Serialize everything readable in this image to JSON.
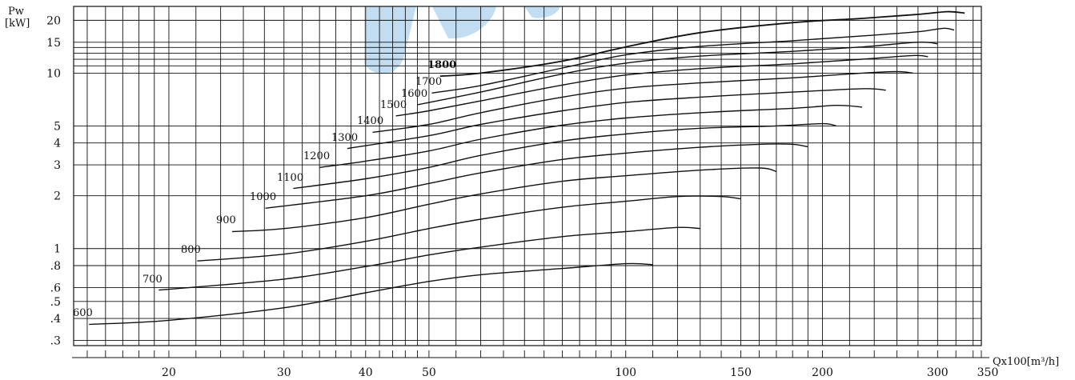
{
  "chart_data": {
    "type": "line",
    "title": "",
    "ylabel": [
      "Pw",
      "[kW]"
    ],
    "xlabel": "Qx100[m³/h]",
    "x_scale": "log",
    "y_scale": "log",
    "xlim": [
      14.3,
      350
    ],
    "ylim": [
      0.28,
      24
    ],
    "grid": true,
    "color": "#111111",
    "x_ticks": [
      {
        "value": 20,
        "label": "20"
      },
      {
        "value": 30,
        "label": "30"
      },
      {
        "value": 40,
        "label": "40"
      },
      {
        "value": 50,
        "label": "50"
      },
      {
        "value": 100,
        "label": "100"
      },
      {
        "value": 150,
        "label": "150"
      },
      {
        "value": 200,
        "label": "200"
      },
      {
        "value": 300,
        "label": "300"
      },
      {
        "value": 350,
        "label": "350"
      }
    ],
    "y_ticks": [
      {
        "value": 0.3,
        "label": ".3"
      },
      {
        "value": 0.4,
        "label": ".4"
      },
      {
        "value": 0.5,
        "label": ".5"
      },
      {
        "value": 0.6,
        "label": ".6"
      },
      {
        "value": 0.8,
        "label": ".8"
      },
      {
        "value": 1,
        "label": "1"
      },
      {
        "value": 2,
        "label": "2"
      },
      {
        "value": 3,
        "label": "3"
      },
      {
        "value": 4,
        "label": "4"
      },
      {
        "value": 5,
        "label": "5"
      },
      {
        "value": 10,
        "label": "10"
      },
      {
        "value": 15,
        "label": "15"
      },
      {
        "value": 20,
        "label": "20"
      }
    ],
    "series": [
      {
        "name": "600",
        "points": [
          [
            15.1,
            0.37
          ],
          [
            20,
            0.39
          ],
          [
            30,
            0.46
          ],
          [
            40,
            0.56
          ],
          [
            50,
            0.65
          ],
          [
            60,
            0.71
          ],
          [
            80,
            0.77
          ],
          [
            100,
            0.82
          ],
          [
            110,
            0.81
          ]
        ]
      },
      {
        "name": "700",
        "points": [
          [
            19.3,
            0.58
          ],
          [
            30,
            0.67
          ],
          [
            40,
            0.79
          ],
          [
            50,
            0.92
          ],
          [
            60,
            1.02
          ],
          [
            80,
            1.17
          ],
          [
            100,
            1.25
          ],
          [
            120,
            1.32
          ],
          [
            130,
            1.3
          ]
        ]
      },
      {
        "name": "800",
        "points": [
          [
            22.1,
            0.85
          ],
          [
            30,
            0.93
          ],
          [
            40,
            1.1
          ],
          [
            50,
            1.3
          ],
          [
            60,
            1.47
          ],
          [
            80,
            1.72
          ],
          [
            100,
            1.86
          ],
          [
            120,
            1.98
          ],
          [
            140,
            1.98
          ],
          [
            150,
            1.92
          ]
        ]
      },
      {
        "name": "900",
        "points": [
          [
            25,
            1.25
          ],
          [
            30,
            1.3
          ],
          [
            40,
            1.5
          ],
          [
            50,
            1.79
          ],
          [
            60,
            2.05
          ],
          [
            80,
            2.42
          ],
          [
            100,
            2.6
          ],
          [
            130,
            2.8
          ],
          [
            160,
            2.88
          ],
          [
            170,
            2.75
          ]
        ]
      },
      {
        "name": "1000",
        "points": [
          [
            28.1,
            1.7
          ],
          [
            40,
            2.0
          ],
          [
            50,
            2.35
          ],
          [
            60,
            2.7
          ],
          [
            80,
            3.22
          ],
          [
            100,
            3.5
          ],
          [
            130,
            3.78
          ],
          [
            160,
            3.93
          ],
          [
            180,
            3.93
          ],
          [
            190,
            3.8
          ]
        ]
      },
      {
        "name": "1100",
        "points": [
          [
            31,
            2.2
          ],
          [
            40,
            2.5
          ],
          [
            50,
            2.9
          ],
          [
            60,
            3.4
          ],
          [
            80,
            4.1
          ],
          [
            100,
            4.5
          ],
          [
            130,
            4.85
          ],
          [
            170,
            5.0
          ],
          [
            200,
            5.15
          ],
          [
            210,
            5.0
          ]
        ]
      },
      {
        "name": "1200",
        "points": [
          [
            34,
            2.9
          ],
          [
            40,
            3.15
          ],
          [
            50,
            3.6
          ],
          [
            60,
            4.2
          ],
          [
            80,
            5.05
          ],
          [
            100,
            5.55
          ],
          [
            130,
            5.95
          ],
          [
            180,
            6.3
          ],
          [
            210,
            6.55
          ],
          [
            230,
            6.4
          ]
        ]
      },
      {
        "name": "1300",
        "points": [
          [
            37.5,
            3.72
          ],
          [
            50,
            4.4
          ],
          [
            60,
            5.1
          ],
          [
            80,
            6.1
          ],
          [
            100,
            6.8
          ],
          [
            130,
            7.3
          ],
          [
            180,
            7.8
          ],
          [
            230,
            8.15
          ],
          [
            250,
            8.0
          ]
        ]
      },
      {
        "name": "1400",
        "points": [
          [
            41,
            4.6
          ],
          [
            50,
            5.1
          ],
          [
            60,
            5.95
          ],
          [
            80,
            7.3
          ],
          [
            100,
            8.2
          ],
          [
            130,
            8.8
          ],
          [
            180,
            9.4
          ],
          [
            230,
            10.0
          ],
          [
            260,
            10.2
          ],
          [
            275,
            10.0
          ]
        ]
      },
      {
        "name": "1500",
        "points": [
          [
            44.5,
            5.7
          ],
          [
            50,
            6.1
          ],
          [
            60,
            6.95
          ],
          [
            80,
            8.55
          ],
          [
            100,
            9.75
          ],
          [
            130,
            10.6
          ],
          [
            180,
            11.3
          ],
          [
            230,
            12.0
          ],
          [
            275,
            12.6
          ],
          [
            290,
            12.4
          ]
        ]
      },
      {
        "name": "1600",
        "points": [
          [
            48,
            6.6
          ],
          [
            60,
            7.8
          ],
          [
            80,
            9.9
          ],
          [
            100,
            11.4
          ],
          [
            130,
            12.5
          ],
          [
            180,
            13.3
          ],
          [
            230,
            14.1
          ],
          [
            280,
            15.0
          ],
          [
            300,
            14.7
          ]
        ]
      },
      {
        "name": "1700",
        "points": [
          [
            50.5,
            7.7
          ],
          [
            60,
            8.5
          ],
          [
            80,
            10.7
          ],
          [
            100,
            12.7
          ],
          [
            130,
            14.2
          ],
          [
            180,
            15.3
          ],
          [
            230,
            16.3
          ],
          [
            280,
            17.2
          ],
          [
            306,
            18.0
          ],
          [
            318,
            17.6
          ]
        ]
      },
      {
        "name": "1800",
        "points": [
          [
            52,
            9.6
          ],
          [
            60,
            10.0
          ],
          [
            80,
            11.7
          ],
          [
            100,
            14.1
          ],
          [
            130,
            17.0
          ],
          [
            180,
            19.4
          ],
          [
            230,
            20.5
          ],
          [
            280,
            21.6
          ],
          [
            310,
            22.4
          ],
          [
            330,
            22.0
          ]
        ]
      }
    ]
  },
  "watermark": {
    "color": "#8fc1e6"
  }
}
